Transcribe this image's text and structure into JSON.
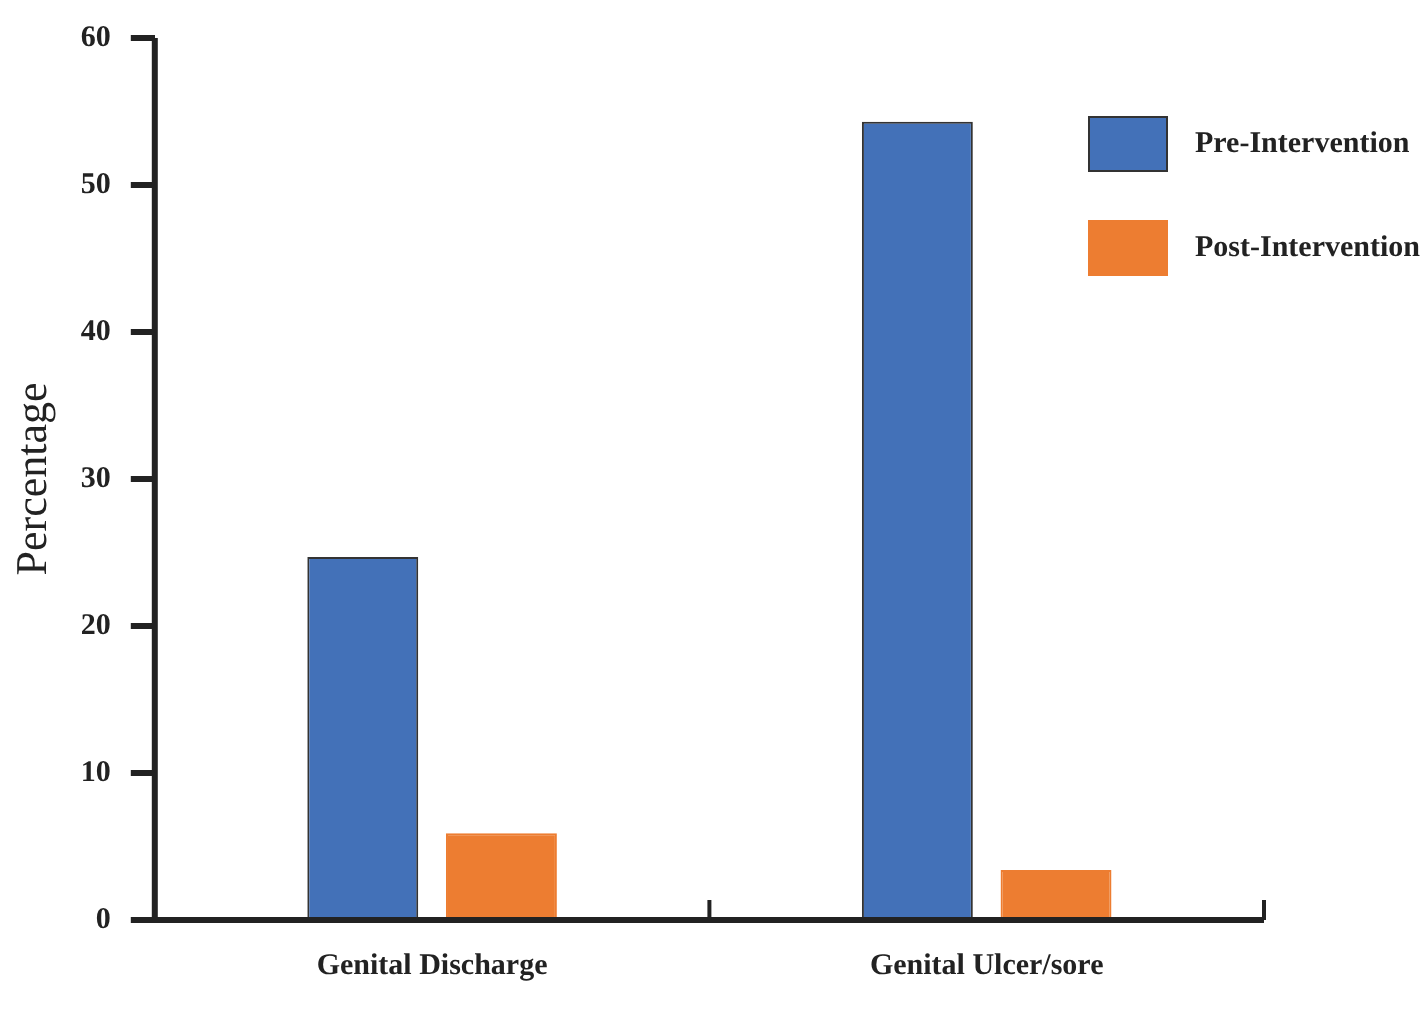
{
  "chart_data": {
    "type": "bar",
    "ylabel": "Percentage",
    "categories": [
      "Genital Discharge",
      "Genital Ulcer/sore"
    ],
    "series": [
      {
        "name": "Pre-Intervention",
        "color": "#4371b8",
        "values": [
          24.7,
          54.3
        ]
      },
      {
        "name": "Post-Intervention",
        "color": "#ed7d31",
        "values": [
          5.9,
          3.4
        ]
      }
    ],
    "ylim": [
      0,
      60
    ],
    "yticks": [
      0,
      10,
      20,
      30,
      40,
      50,
      60
    ],
    "grid": false,
    "legend": "top right"
  }
}
